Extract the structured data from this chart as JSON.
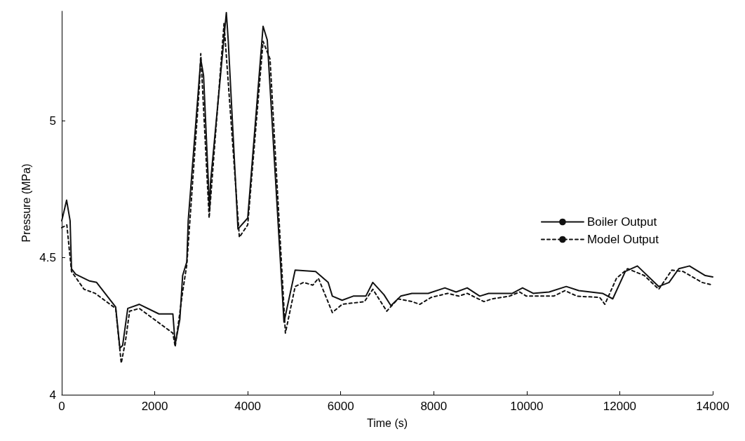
{
  "chart_data": {
    "type": "line",
    "xlabel": "Time (s)",
    "ylabel": "Pressure (MPa)",
    "xlim": [
      0,
      14000
    ],
    "ylim": [
      4,
      5.4
    ],
    "xticks": [
      0,
      2000,
      4000,
      6000,
      8000,
      10000,
      12000,
      14000
    ],
    "yticks": [
      4,
      4.5,
      5
    ],
    "grid": false,
    "legend": "right",
    "marker": "none",
    "series": [
      {
        "name": "Boiler Output",
        "color": "#111111",
        "line_style": "solid",
        "x": [
          0,
          105,
          180,
          210,
          300,
          600,
          750,
          1160,
          1250,
          1310,
          1420,
          1670,
          2090,
          2390,
          2440,
          2540,
          2600,
          2690,
          2720,
          2990,
          3050,
          3140,
          3180,
          3200,
          3540,
          3580,
          3790,
          4000,
          4330,
          4420,
          4780,
          5020,
          5460,
          5730,
          5820,
          6030,
          6270,
          6540,
          6690,
          6930,
          7080,
          7290,
          7530,
          7880,
          8240,
          8480,
          8720,
          8990,
          9180,
          9690,
          9910,
          10140,
          10480,
          10850,
          11120,
          11630,
          11850,
          12120,
          12380,
          12840,
          13060,
          13270,
          13500,
          13840,
          14000
        ],
        "values": [
          4.635,
          4.71,
          4.635,
          4.46,
          4.44,
          4.415,
          4.41,
          4.32,
          4.17,
          4.18,
          4.315,
          4.33,
          4.295,
          4.295,
          4.185,
          4.275,
          4.435,
          4.485,
          4.635,
          5.225,
          5.165,
          4.825,
          4.67,
          4.775,
          5.395,
          5.295,
          4.605,
          4.645,
          5.345,
          5.295,
          4.265,
          4.455,
          4.45,
          4.41,
          4.36,
          4.345,
          4.36,
          4.36,
          4.41,
          4.365,
          4.325,
          4.36,
          4.37,
          4.37,
          4.39,
          4.375,
          4.39,
          4.36,
          4.37,
          4.37,
          4.39,
          4.37,
          4.375,
          4.395,
          4.38,
          4.37,
          4.35,
          4.45,
          4.47,
          4.395,
          4.41,
          4.46,
          4.47,
          4.435,
          4.43
        ]
      },
      {
        "name": "Model Output",
        "color": "#111111",
        "line_style": "dashed",
        "x": [
          0,
          110,
          210,
          480,
          720,
          1160,
          1280,
          1370,
          1460,
          1670,
          2390,
          2440,
          2600,
          2690,
          2960,
          2990,
          3170,
          3490,
          3820,
          4000,
          4330,
          4480,
          4810,
          5020,
          5200,
          5400,
          5520,
          5820,
          6030,
          6510,
          6690,
          6990,
          7230,
          7530,
          7700,
          7940,
          8300,
          8540,
          8720,
          9080,
          9260,
          9630,
          9850,
          9990,
          10580,
          10820,
          11080,
          11570,
          11680,
          11930,
          12170,
          12530,
          12840,
          13120,
          13360,
          13770,
          14000
        ],
        "values": [
          4.61,
          4.62,
          4.45,
          4.385,
          4.37,
          4.315,
          4.115,
          4.195,
          4.305,
          4.315,
          4.225,
          4.175,
          4.375,
          4.475,
          5.125,
          5.245,
          4.645,
          5.355,
          4.575,
          4.62,
          5.29,
          5.225,
          4.225,
          4.395,
          4.41,
          4.4,
          4.425,
          4.3,
          4.33,
          4.34,
          4.385,
          4.305,
          4.35,
          4.34,
          4.33,
          4.355,
          4.37,
          4.36,
          4.37,
          4.34,
          4.35,
          4.36,
          4.375,
          4.36,
          4.36,
          4.38,
          4.36,
          4.355,
          4.33,
          4.425,
          4.46,
          4.435,
          4.385,
          4.455,
          4.45,
          4.41,
          4.4
        ]
      }
    ]
  }
}
